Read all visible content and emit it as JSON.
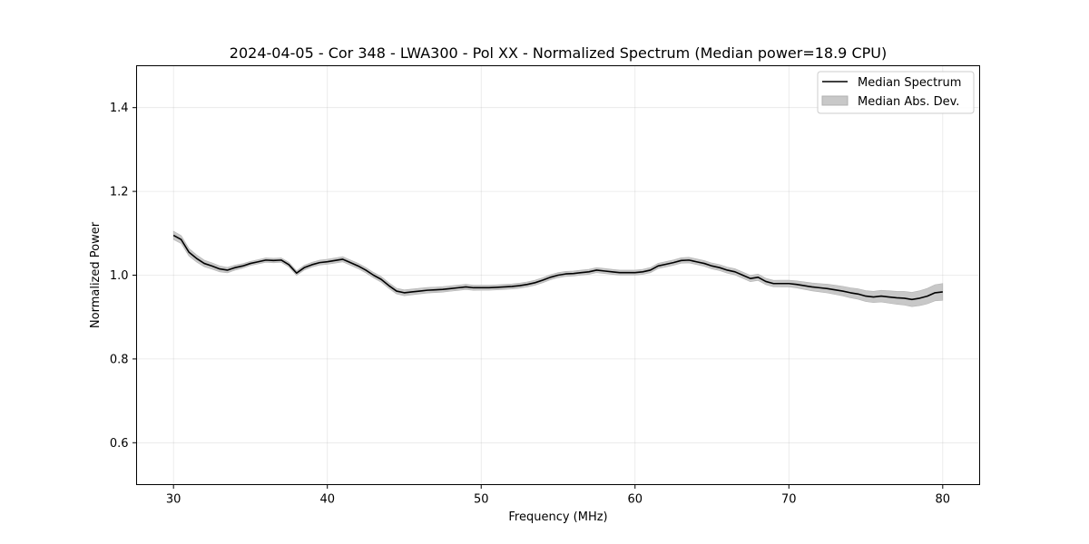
{
  "chart_data": {
    "type": "line",
    "title": "2024-04-05 - Cor 348 - LWA300 - Pol XX - Normalized Spectrum (Median power=18.9 CPU)",
    "xlabel": "Frequency (MHz)",
    "ylabel": "Normalized Power",
    "xlim": [
      27.6,
      82.4
    ],
    "ylim": [
      0.5,
      1.5
    ],
    "xticks": [
      30,
      40,
      50,
      60,
      70,
      80
    ],
    "xtick_labels": [
      "30",
      "40",
      "50",
      "60",
      "70",
      "80"
    ],
    "yticks": [
      0.6,
      0.8,
      1.0,
      1.2,
      1.4
    ],
    "ytick_labels": [
      "0.6",
      "0.8",
      "1.0",
      "1.2",
      "1.4"
    ],
    "grid": true,
    "legend": {
      "placement": "top-right",
      "entries": [
        "Median Spectrum",
        "Median Abs. Dev."
      ]
    },
    "series": [
      {
        "name": "Median Spectrum",
        "color": "#000000",
        "x": [
          30.0,
          30.5,
          31.0,
          31.5,
          32.0,
          32.5,
          33.0,
          33.5,
          34.0,
          34.5,
          35.0,
          35.5,
          36.0,
          36.5,
          37.0,
          37.5,
          38.0,
          38.5,
          39.0,
          39.5,
          40.0,
          40.5,
          41.0,
          41.5,
          42.0,
          42.5,
          43.0,
          43.5,
          44.0,
          44.5,
          45.0,
          45.5,
          46.0,
          46.5,
          47.0,
          47.5,
          48.0,
          48.5,
          49.0,
          49.5,
          50.0,
          50.5,
          51.0,
          51.5,
          52.0,
          52.5,
          53.0,
          53.5,
          54.0,
          54.5,
          55.0,
          55.5,
          56.0,
          56.5,
          57.0,
          57.5,
          58.0,
          58.5,
          59.0,
          59.5,
          60.0,
          60.5,
          61.0,
          61.5,
          62.0,
          62.5,
          63.0,
          63.5,
          64.0,
          64.5,
          65.0,
          65.5,
          66.0,
          66.5,
          67.0,
          67.5,
          68.0,
          68.5,
          69.0,
          69.5,
          70.0,
          70.5,
          71.0,
          71.5,
          72.0,
          72.5,
          73.0,
          73.5,
          74.0,
          74.5,
          75.0,
          75.5,
          76.0,
          76.5,
          77.0,
          77.5,
          78.0,
          78.5,
          79.0,
          79.5,
          80.0
        ],
        "values": [
          1.095,
          1.085,
          1.055,
          1.04,
          1.028,
          1.022,
          1.015,
          1.012,
          1.018,
          1.022,
          1.028,
          1.032,
          1.036,
          1.035,
          1.036,
          1.025,
          1.005,
          1.018,
          1.025,
          1.03,
          1.032,
          1.035,
          1.038,
          1.03,
          1.022,
          1.012,
          1.0,
          0.99,
          0.975,
          0.962,
          0.958,
          0.96,
          0.962,
          0.964,
          0.965,
          0.966,
          0.968,
          0.97,
          0.972,
          0.97,
          0.97,
          0.97,
          0.971,
          0.972,
          0.973,
          0.975,
          0.978,
          0.982,
          0.988,
          0.995,
          1.0,
          1.003,
          1.004,
          1.006,
          1.008,
          1.012,
          1.01,
          1.008,
          1.006,
          1.006,
          1.006,
          1.008,
          1.012,
          1.022,
          1.026,
          1.03,
          1.035,
          1.036,
          1.032,
          1.028,
          1.022,
          1.018,
          1.012,
          1.008,
          1.0,
          0.992,
          0.995,
          0.985,
          0.98,
          0.98,
          0.98,
          0.978,
          0.975,
          0.972,
          0.97,
          0.968,
          0.965,
          0.962,
          0.958,
          0.955,
          0.95,
          0.948,
          0.95,
          0.948,
          0.946,
          0.945,
          0.942,
          0.945,
          0.95,
          0.958,
          0.96
        ]
      },
      {
        "name": "Median Abs. Dev.",
        "color": "#c8c8c8",
        "x": [
          30.0,
          35.0,
          40.0,
          45.0,
          50.0,
          55.0,
          60.0,
          65.0,
          70.0,
          72.0,
          74.0,
          76.0,
          78.0,
          80.0
        ],
        "values": [
          0.01,
          0.005,
          0.006,
          0.007,
          0.006,
          0.006,
          0.006,
          0.007,
          0.008,
          0.01,
          0.012,
          0.014,
          0.017,
          0.02
        ]
      }
    ]
  }
}
